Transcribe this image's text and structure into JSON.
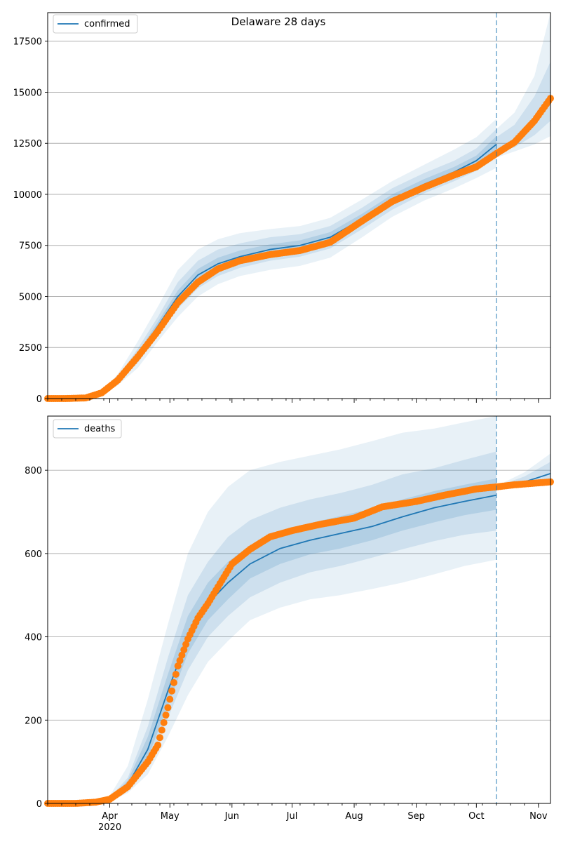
{
  "chart_data": [
    {
      "type": "line",
      "title": "Delaware 28 days",
      "legend": {
        "entries": [
          "confirmed"
        ],
        "placement": "top-left"
      },
      "x_range": [
        "2020-03-01",
        "2020-11-07"
      ],
      "forecast_start": "2020-10-11",
      "ylim": [
        0,
        18900
      ],
      "y_ticks": [
        0,
        2500,
        5000,
        7500,
        10000,
        12500,
        15000,
        17500
      ],
      "grid": true,
      "series": [
        {
          "name": "confirmed",
          "x": [
            "2020-03-01",
            "2020-03-10",
            "2020-03-20",
            "2020-03-28",
            "2020-04-05",
            "2020-04-15",
            "2020-04-25",
            "2020-05-05",
            "2020-05-15",
            "2020-05-25",
            "2020-06-05",
            "2020-06-20",
            "2020-07-05",
            "2020-07-20",
            "2020-08-05",
            "2020-08-20",
            "2020-09-05",
            "2020-09-20",
            "2020-10-01",
            "2020-10-11"
          ],
          "values": [
            0,
            0,
            30,
            250,
            900,
            2100,
            3550,
            5000,
            6050,
            6600,
            6950,
            7300,
            7500,
            7900,
            8800,
            9750,
            10500,
            11100,
            11650,
            12450
          ]
        }
      ],
      "observed": {
        "x": [
          "2020-03-01",
          "2020-03-10",
          "2020-03-20",
          "2020-03-28",
          "2020-04-05",
          "2020-04-15",
          "2020-04-25",
          "2020-05-05",
          "2020-05-15",
          "2020-05-25",
          "2020-06-05",
          "2020-06-20",
          "2020-07-05",
          "2020-07-20",
          "2020-08-05",
          "2020-08-20",
          "2020-09-05",
          "2020-09-20",
          "2020-10-01",
          "2020-10-11",
          "2020-10-20",
          "2020-10-30",
          "2020-11-07"
        ],
        "values": [
          0,
          0,
          30,
          280,
          900,
          2050,
          3300,
          4700,
          5700,
          6350,
          6750,
          7050,
          7250,
          7650,
          8700,
          9650,
          10350,
          10950,
          11350,
          12000,
          12550,
          13600,
          14700
        ]
      },
      "intervals": [
        {
          "x": [
            "2020-03-01",
            "2020-03-10",
            "2020-03-20",
            "2020-03-28",
            "2020-04-05",
            "2020-04-15",
            "2020-04-25",
            "2020-05-05",
            "2020-05-15",
            "2020-05-25",
            "2020-06-05",
            "2020-06-20",
            "2020-07-05",
            "2020-07-20",
            "2020-08-05",
            "2020-08-20",
            "2020-09-05",
            "2020-09-20",
            "2020-10-01",
            "2020-10-11"
          ],
          "lower": [
            0,
            0,
            20,
            180,
            650,
            1500,
            2800,
            4000,
            5000,
            5600,
            6000,
            6300,
            6500,
            6900,
            7900,
            8900,
            9700,
            10300,
            10800,
            11300
          ],
          "upper": [
            0,
            0,
            45,
            350,
            1200,
            2800,
            4500,
            6300,
            7300,
            7800,
            8100,
            8300,
            8450,
            8850,
            9750,
            10650,
            11450,
            12200,
            12800,
            13700
          ]
        },
        {
          "x": [
            "2020-03-01",
            "2020-03-10",
            "2020-03-20",
            "2020-03-28",
            "2020-04-05",
            "2020-04-15",
            "2020-04-25",
            "2020-05-05",
            "2020-05-15",
            "2020-05-25",
            "2020-06-05",
            "2020-06-20",
            "2020-07-05",
            "2020-07-20",
            "2020-08-05",
            "2020-08-20",
            "2020-09-05",
            "2020-09-20",
            "2020-10-01",
            "2020-10-11"
          ],
          "lower": [
            0,
            0,
            25,
            210,
            760,
            1750,
            3100,
            4400,
            5400,
            6000,
            6400,
            6750,
            6950,
            7350,
            8300,
            9250,
            10050,
            10650,
            11150,
            11800
          ],
          "upper": [
            0,
            0,
            38,
            300,
            1050,
            2450,
            4000,
            5700,
            6750,
            7300,
            7600,
            7900,
            8050,
            8450,
            9350,
            10300,
            11050,
            11650,
            12250,
            13200
          ]
        },
        {
          "x": [
            "2020-03-01",
            "2020-03-10",
            "2020-03-20",
            "2020-03-28",
            "2020-04-05",
            "2020-04-15",
            "2020-04-25",
            "2020-05-05",
            "2020-05-15",
            "2020-05-25",
            "2020-06-05",
            "2020-06-20",
            "2020-07-05",
            "2020-07-20",
            "2020-08-05",
            "2020-08-20",
            "2020-09-05",
            "2020-09-20",
            "2020-10-01",
            "2020-10-11"
          ],
          "lower": [
            0,
            0,
            27,
            230,
            830,
            1950,
            3350,
            4700,
            5750,
            6300,
            6700,
            7050,
            7250,
            7650,
            8550,
            9500,
            10300,
            10900,
            11450,
            12050
          ],
          "upper": [
            0,
            0,
            34,
            275,
            970,
            2250,
            3750,
            5300,
            6350,
            6900,
            7250,
            7550,
            7750,
            8150,
            9050,
            10000,
            10750,
            11350,
            11900,
            12850
          ]
        }
      ],
      "forecast_intervals": [
        {
          "x": [
            "2020-10-11",
            "2020-10-20",
            "2020-10-30",
            "2020-11-07"
          ],
          "lower": [
            11800,
            12100,
            12450,
            12850
          ],
          "upper": [
            13200,
            14000,
            15800,
            18900
          ]
        },
        {
          "x": [
            "2020-10-11",
            "2020-10-20",
            "2020-10-30",
            "2020-11-07"
          ],
          "lower": [
            12100,
            12300,
            12900,
            13600
          ],
          "upper": [
            12800,
            13400,
            14800,
            16500
          ]
        }
      ]
    },
    {
      "type": "line",
      "legend": {
        "entries": [
          "deaths"
        ],
        "placement": "top-left"
      },
      "x_range": [
        "2020-03-01",
        "2020-11-07"
      ],
      "x_ticks": [
        {
          "date": "2020-04-01",
          "label": "Apr",
          "sublabel": "2020"
        },
        {
          "date": "2020-05-01",
          "label": "May",
          "sublabel": ""
        },
        {
          "date": "2020-06-01",
          "label": "Jun",
          "sublabel": ""
        },
        {
          "date": "2020-07-01",
          "label": "Jul",
          "sublabel": ""
        },
        {
          "date": "2020-08-01",
          "label": "Aug",
          "sublabel": ""
        },
        {
          "date": "2020-09-01",
          "label": "Sep",
          "sublabel": ""
        },
        {
          "date": "2020-10-01",
          "label": "Oct",
          "sublabel": ""
        },
        {
          "date": "2020-11-01",
          "label": "Nov",
          "sublabel": ""
        }
      ],
      "forecast_start": "2020-10-11",
      "ylim": [
        0,
        930
      ],
      "y_ticks": [
        0,
        200,
        400,
        600,
        800
      ],
      "grid": true,
      "series": [
        {
          "name": "deaths",
          "x": [
            "2020-03-01",
            "2020-03-15",
            "2020-03-25",
            "2020-04-01",
            "2020-04-10",
            "2020-04-20",
            "2020-04-30",
            "2020-05-10",
            "2020-05-20",
            "2020-05-30",
            "2020-06-10",
            "2020-06-25",
            "2020-07-10",
            "2020-07-25",
            "2020-08-10",
            "2020-08-25",
            "2020-09-10",
            "2020-09-25",
            "2020-10-11"
          ],
          "values": [
            0,
            0,
            2,
            10,
            45,
            130,
            270,
            400,
            480,
            530,
            575,
            612,
            632,
            648,
            665,
            688,
            710,
            725,
            740
          ]
        }
      ],
      "observed": {
        "x": [
          "2020-03-01",
          "2020-03-15",
          "2020-03-25",
          "2020-04-01",
          "2020-04-10",
          "2020-04-20",
          "2020-04-25",
          "2020-04-30",
          "2020-05-05",
          "2020-05-10",
          "2020-05-15",
          "2020-05-20",
          "2020-05-25",
          "2020-06-01",
          "2020-06-10",
          "2020-06-20",
          "2020-07-01",
          "2020-07-15",
          "2020-08-01",
          "2020-08-15",
          "2020-09-01",
          "2020-09-15",
          "2020-10-01",
          "2020-10-11",
          "2020-10-20",
          "2020-11-07"
        ],
        "values": [
          0,
          0,
          3,
          10,
          40,
          100,
          140,
          230,
          330,
          395,
          445,
          480,
          520,
          575,
          610,
          640,
          655,
          670,
          685,
          712,
          725,
          740,
          755,
          760,
          765,
          772
        ]
      },
      "intervals": [
        {
          "x": [
            "2020-03-01",
            "2020-03-15",
            "2020-03-25",
            "2020-04-01",
            "2020-04-10",
            "2020-04-20",
            "2020-04-30",
            "2020-05-10",
            "2020-05-20",
            "2020-05-30",
            "2020-06-10",
            "2020-06-25",
            "2020-07-10",
            "2020-07-25",
            "2020-08-10",
            "2020-08-25",
            "2020-09-10",
            "2020-09-25",
            "2020-10-11"
          ],
          "lower": [
            0,
            0,
            1,
            5,
            25,
            70,
            160,
            260,
            340,
            390,
            440,
            470,
            490,
            500,
            515,
            530,
            550,
            570,
            585
          ],
          "upper": [
            0,
            0,
            4,
            18,
            90,
            250,
            430,
            600,
            700,
            760,
            800,
            820,
            835,
            850,
            870,
            890,
            900,
            915,
            930
          ]
        },
        {
          "x": [
            "2020-03-01",
            "2020-03-15",
            "2020-03-25",
            "2020-04-01",
            "2020-04-10",
            "2020-04-20",
            "2020-04-30",
            "2020-05-10",
            "2020-05-20",
            "2020-05-30",
            "2020-06-10",
            "2020-06-25",
            "2020-07-10",
            "2020-07-25",
            "2020-08-10",
            "2020-08-25",
            "2020-09-10",
            "2020-09-25",
            "2020-10-11"
          ],
          "lower": [
            0,
            0,
            2,
            7,
            33,
            95,
            205,
            320,
            400,
            450,
            495,
            530,
            555,
            570,
            590,
            610,
            630,
            645,
            655
          ],
          "upper": [
            0,
            0,
            3,
            14,
            62,
            185,
            350,
            500,
            580,
            640,
            680,
            710,
            730,
            745,
            765,
            790,
            805,
            825,
            845
          ]
        },
        {
          "x": [
            "2020-03-01",
            "2020-03-15",
            "2020-03-25",
            "2020-04-01",
            "2020-04-10",
            "2020-04-20",
            "2020-04-30",
            "2020-05-10",
            "2020-05-20",
            "2020-05-30",
            "2020-06-10",
            "2020-06-25",
            "2020-07-10",
            "2020-07-25",
            "2020-08-10",
            "2020-08-25",
            "2020-09-10",
            "2020-09-25",
            "2020-10-11"
          ],
          "lower": [
            0,
            0,
            2,
            8,
            38,
            110,
            235,
            360,
            440,
            490,
            540,
            575,
            598,
            612,
            632,
            655,
            675,
            692,
            705
          ],
          "upper": [
            0,
            0,
            3,
            12,
            55,
            160,
            310,
            450,
            530,
            580,
            620,
            655,
            673,
            690,
            708,
            730,
            750,
            765,
            780
          ]
        }
      ],
      "forecast_intervals": [
        {
          "x": [
            "2020-10-11",
            "2020-10-25",
            "2020-11-07"
          ],
          "lower": [
            755,
            765,
            770
          ],
          "upper": [
            762,
            795,
            840
          ]
        },
        {
          "x": [
            "2020-10-11",
            "2020-10-25",
            "2020-11-07"
          ],
          "lower": [
            757,
            768,
            775
          ],
          "upper": [
            761,
            785,
            820
          ]
        }
      ],
      "forecast_series": {
        "x": [
          "2020-10-11",
          "2020-10-25",
          "2020-11-07"
        ],
        "values": [
          757,
          772,
          792
        ]
      }
    }
  ],
  "colors": {
    "line": "#1f77b4",
    "observed": "#ff7f0e",
    "band": "#1f77b4",
    "forecast_marker": "#1f77b4",
    "grid": "#b0b0b0"
  }
}
